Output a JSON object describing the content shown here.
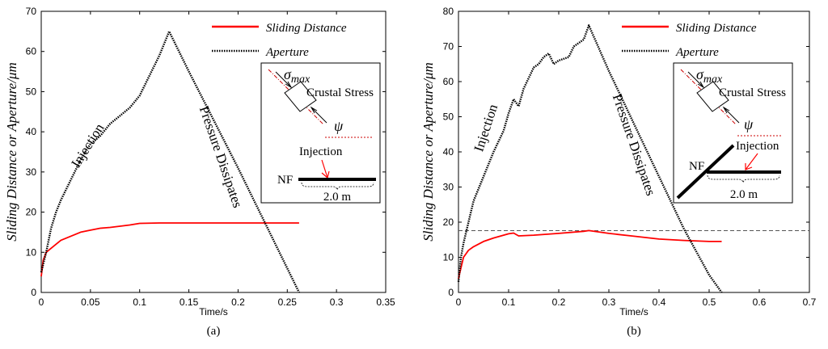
{
  "chart_data": [
    {
      "type": "line",
      "panel_label": "(a)",
      "xlabel": "Time/s",
      "ylabel": "Sliding Distance or Aperture/μm",
      "xlim": [
        0,
        0.35
      ],
      "ylim": [
        0,
        70
      ],
      "xticks": [
        0,
        0.05,
        0.1,
        0.15,
        0.2,
        0.25,
        0.3,
        0.35
      ],
      "xtick_labels": [
        "0",
        "0.05",
        "0.1",
        "0.15",
        "0.2",
        "0.25",
        "0.3",
        "0.35"
      ],
      "yticks": [
        0,
        10,
        20,
        30,
        40,
        50,
        60,
        70
      ],
      "ytick_labels": [
        "0",
        "10",
        "20",
        "30",
        "40",
        "50",
        "60",
        "70"
      ],
      "legend_position": "top-right",
      "series": [
        {
          "name": "Sliding Distance",
          "color": "#ff0000",
          "style": "solid",
          "x": [
            0,
            0.002,
            0.005,
            0.01,
            0.015,
            0.02,
            0.03,
            0.04,
            0.05,
            0.06,
            0.07,
            0.08,
            0.09,
            0.1,
            0.12,
            0.15,
            0.2,
            0.25,
            0.262
          ],
          "y": [
            4,
            8,
            10,
            11,
            12,
            13,
            14,
            15,
            15.5,
            16,
            16.2,
            16.5,
            16.8,
            17.2,
            17.3,
            17.3,
            17.3,
            17.3,
            17.3
          ]
        },
        {
          "name": "Aperture",
          "color": "#000000",
          "style": "dotted",
          "x": [
            0,
            0.005,
            0.01,
            0.015,
            0.02,
            0.03,
            0.04,
            0.05,
            0.06,
            0.07,
            0.08,
            0.09,
            0.1,
            0.11,
            0.12,
            0.13,
            0.15,
            0.2,
            0.25,
            0.262
          ],
          "y": [
            5,
            10,
            16,
            20,
            23,
            28,
            33,
            37,
            39,
            42,
            44,
            46,
            49,
            54,
            59,
            65,
            55,
            31,
            6,
            0
          ]
        }
      ],
      "annotations": {
        "injection": "Injection",
        "dissipates": "Pressure Dissipates"
      },
      "inset": {
        "sigma_symbol": "σ",
        "sigma_subscript": "max",
        "crustal_stress": "Crustal Stress",
        "psi": "ψ",
        "injection": "Injection",
        "nf": "NF",
        "length": "2.0 m"
      }
    },
    {
      "type": "line",
      "panel_label": "(b)",
      "xlabel": "Time/s",
      "ylabel": "Sliding Distance or Aperture/μm",
      "xlim": [
        0,
        0.7
      ],
      "ylim": [
        0,
        80
      ],
      "xticks": [
        0,
        0.1,
        0.2,
        0.3,
        0.4,
        0.5,
        0.6,
        0.7
      ],
      "xtick_labels": [
        "0",
        "0.1",
        "0.2",
        "0.3",
        "0.4",
        "0.5",
        "0.6",
        "0.7"
      ],
      "yticks": [
        0,
        10,
        20,
        30,
        40,
        50,
        60,
        70,
        80
      ],
      "ytick_labels": [
        "0",
        "10",
        "20",
        "30",
        "40",
        "50",
        "60",
        "70",
        "80"
      ],
      "legend_position": "top-right",
      "reference_line_y": 17.6,
      "series": [
        {
          "name": "Sliding Distance",
          "color": "#ff0000",
          "style": "solid",
          "x": [
            0,
            0.005,
            0.01,
            0.02,
            0.03,
            0.05,
            0.07,
            0.09,
            0.1,
            0.11,
            0.12,
            0.15,
            0.2,
            0.25,
            0.26,
            0.3,
            0.35,
            0.4,
            0.45,
            0.5,
            0.525
          ],
          "y": [
            4,
            7,
            10,
            12,
            13,
            14.5,
            15.5,
            16.3,
            16.7,
            16.9,
            16.1,
            16.3,
            16.8,
            17.4,
            17.6,
            16.8,
            16,
            15.2,
            14.8,
            14.5,
            14.5
          ]
        },
        {
          "name": "Aperture",
          "color": "#000000",
          "style": "dotted",
          "x": [
            0,
            0.005,
            0.01,
            0.02,
            0.03,
            0.05,
            0.07,
            0.09,
            0.1,
            0.11,
            0.12,
            0.13,
            0.14,
            0.15,
            0.16,
            0.17,
            0.18,
            0.19,
            0.2,
            0.22,
            0.23,
            0.24,
            0.25,
            0.26,
            0.3,
            0.35,
            0.4,
            0.45,
            0.5,
            0.525
          ],
          "y": [
            3,
            10,
            14,
            20,
            26,
            33,
            40,
            46,
            51,
            55,
            53,
            58,
            61,
            64,
            65,
            67,
            68,
            65,
            66,
            67,
            70,
            71,
            72,
            76,
            63,
            48,
            33,
            18,
            5,
            0
          ]
        }
      ],
      "annotations": {
        "injection": "Injection",
        "dissipates": "Pressure Dissipates"
      },
      "inset": {
        "sigma_symbol": "σ",
        "sigma_subscript": "max",
        "crustal_stress": "Crustal Stress",
        "psi": "ψ",
        "injection": "Injection",
        "nf": "NF",
        "length": "2.0 m"
      }
    }
  ]
}
